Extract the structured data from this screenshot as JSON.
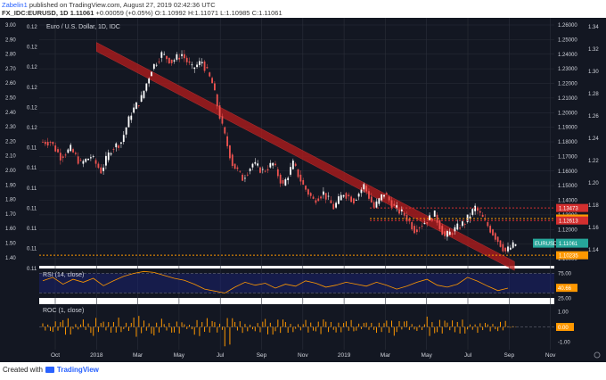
{
  "header": {
    "line1": {
      "author": "Zabelin1",
      "rest": " published on TradingView.com, August 27, 2019 02:42:36 UTC"
    },
    "line2": {
      "symbol": "FX_IDC:EURUSD, 1D",
      "price": "1.11061",
      "change": "+0.00059 (+0.05%)",
      "o_label": "O:",
      "o_val": "1.10992",
      "h_label": "H:",
      "h_val": "1.11071",
      "l_label": "L:",
      "l_val": "1.10985",
      "c_label": "C:",
      "c_val": "1.11061"
    }
  },
  "footer": {
    "prefix": "Created with",
    "brand": "TradingView"
  },
  "colors": {
    "bg": "#131722",
    "grid": "#2a2e39",
    "up": "#ffffff",
    "down": "#ef5350",
    "channel": "#b71c1c",
    "res": "#d32f2f",
    "orange": "#ff9800",
    "teal": "#26a69a",
    "axis_text": "#d1d4dc"
  },
  "chart_data": [
    {
      "type": "candlestick",
      "title": "Euro / U.S. Dollar, 1D, IDC",
      "x_ticks": [
        "Oct",
        "2018",
        "Mar",
        "May",
        "Jul",
        "Sep",
        "Nov",
        "2019",
        "Mar",
        "May",
        "Jul",
        "Sep",
        "Nov"
      ],
      "y_right_ticks": [
        "1.26000",
        "1.25000",
        "1.24000",
        "1.23000",
        "1.22000",
        "1.21000",
        "1.20000",
        "1.19000",
        "1.18000",
        "1.17000",
        "1.16000",
        "1.15000",
        "1.14000",
        "1.13000",
        "1.12000",
        "1.11000",
        "1.10000"
      ],
      "y_right_range": [
        1.1,
        1.26
      ],
      "y_left_ticks": [
        "3.00",
        "2.90",
        "2.80",
        "2.70",
        "2.60",
        "2.50",
        "2.40",
        "2.30",
        "2.20",
        "2.10",
        "2.00",
        "1.90",
        "1.80",
        "1.70",
        "1.60",
        "1.50",
        "1.40"
      ],
      "y_left2_ticks": [
        "0.12",
        "0.12",
        "0.12",
        "0.12",
        "0.12",
        "0.12",
        "0.11",
        "0.11",
        "0.11",
        "0.11",
        "0.11",
        "0.11",
        "0.11"
      ],
      "y_far_ticks": [
        "1.34",
        "1.32",
        "1.30",
        "1.28",
        "1.26",
        "1.24",
        "1.22",
        "1.20",
        "1.18",
        "1.16",
        "1.14"
      ],
      "closes": [
        1.18,
        1.17,
        1.175,
        1.165,
        1.17,
        1.16,
        1.175,
        1.18,
        1.2,
        1.21,
        1.23,
        1.24,
        1.235,
        1.24,
        1.23,
        1.235,
        1.22,
        1.19,
        1.165,
        1.155,
        1.165,
        1.16,
        1.165,
        1.15,
        1.165,
        1.15,
        1.14,
        1.145,
        1.135,
        1.145,
        1.14,
        1.15,
        1.135,
        1.145,
        1.135,
        1.13,
        1.12,
        1.125,
        1.13,
        1.115,
        1.12,
        1.125,
        1.135,
        1.125,
        1.115,
        1.105,
        1.11
      ],
      "levels": [
        {
          "label": "1.13473",
          "value": 1.13473,
          "color": "#d32f2f",
          "style": "dotted"
        },
        {
          "label": "1.12750",
          "value": 1.1275,
          "color": "#ff9800",
          "style": "dotted"
        },
        {
          "label": "1.12613",
          "value": 1.12613,
          "color": "#d32f2f",
          "style": "dotted"
        },
        {
          "label": "1.10235",
          "value": 1.10235,
          "color": "#ff9800",
          "style": "dotted"
        }
      ],
      "last_price": {
        "symbol": "EURUSD",
        "value": "1.11061"
      },
      "channel": {
        "from": {
          "x_tick": "2018",
          "y": 1.245
        },
        "to": {
          "x_tick": "Sep",
          "y": 1.095
        },
        "color": "#b71c1c"
      }
    },
    {
      "type": "line",
      "title": "RSI (14, close)",
      "y_ticks": [
        "75.00",
        "25.00"
      ],
      "levels": [
        70,
        30
      ],
      "y_range": [
        20,
        80
      ],
      "last_value": "40.66",
      "values": [
        55,
        62,
        48,
        58,
        52,
        60,
        45,
        55,
        64,
        70,
        74,
        72,
        66,
        60,
        56,
        48,
        38,
        34,
        30,
        42,
        52,
        46,
        50,
        40,
        48,
        44,
        55,
        50,
        42,
        46,
        52,
        48,
        44,
        52,
        46,
        38,
        44,
        52,
        58,
        46,
        42,
        48,
        62,
        54,
        44,
        35,
        40
      ]
    },
    {
      "type": "bar",
      "title": "ROC (1, close)",
      "y_ticks": [
        "1.00",
        "-1.00"
      ],
      "y_range": [
        -1.5,
        1.5
      ],
      "zero_label": "0.00",
      "values": [
        0.3,
        -0.4,
        0.6,
        -0.2,
        0.5,
        -0.6,
        0.4,
        0.7,
        -0.3,
        0.9,
        0.5,
        -0.7,
        0.4,
        -0.5,
        0.3,
        -0.8,
        -0.6,
        0.4,
        -1.3,
        0.5,
        0.3,
        -0.4,
        0.6,
        -0.5,
        0.4,
        -0.3,
        0.5,
        -0.6,
        0.4,
        -0.4,
        0.5,
        -0.3,
        0.3,
        -0.5,
        0.6,
        -0.4,
        0.4,
        -0.3,
        0.7,
        -0.6,
        0.5,
        0.6,
        -0.3,
        -0.5,
        0.3,
        -0.4,
        0.05
      ]
    }
  ]
}
